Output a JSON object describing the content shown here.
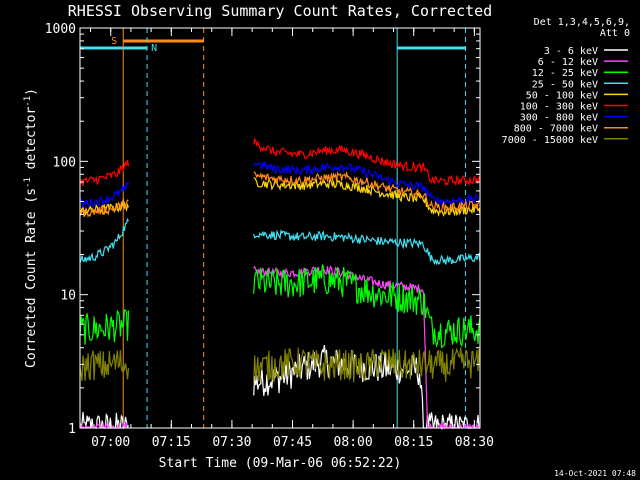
{
  "chart_data": {
    "type": "line",
    "title": "RHESSI Observing Summary Count Rates, Corrected",
    "xlabel": "Start Time (09-Mar-06 06:52:22)",
    "ylabel": "Corrected Count Rate (s",
    "ylabel_sup": "-1",
    "ylabel_tail": " detector",
    "ylabel_close": ")",
    "x_unit": "minutes since 06:52:22",
    "xlim": [
      0,
      99
    ],
    "ylim": [
      1,
      1000
    ],
    "yscale": "log",
    "xticks": [
      {
        "value": 7.6,
        "label": "07:00"
      },
      {
        "value": 22.6,
        "label": "07:15"
      },
      {
        "value": 37.6,
        "label": "07:30"
      },
      {
        "value": 52.6,
        "label": "07:45"
      },
      {
        "value": 67.6,
        "label": "08:00"
      },
      {
        "value": 82.6,
        "label": "08:15"
      },
      {
        "value": 97.6,
        "label": "08:30"
      }
    ],
    "yticks": [
      {
        "value": 1,
        "label": "1"
      },
      {
        "value": 10,
        "label": "10"
      },
      {
        "value": 100,
        "label": "100"
      },
      {
        "value": 1000,
        "label": "1000"
      }
    ],
    "legend_header": [
      "Det 1,3,4,5,6,9,",
      "Att 0"
    ],
    "legend_position": "right",
    "footer_timestamp": "14-Oct-2021 07:48",
    "annotations": [
      {
        "text": "S",
        "color": "#ff8c1a"
      },
      {
        "text": "N",
        "color": "#40e0f0"
      }
    ],
    "gaps": [
      [
        12.0,
        43.0
      ],
      [
        105.0,
        110.0
      ]
    ],
    "series": [
      {
        "name": "3 - 6 keV",
        "color": "#ffffff",
        "x": [
          0,
          12,
          43,
          50,
          55,
          60,
          65,
          70,
          75,
          80,
          84,
          85,
          90,
          95,
          99
        ],
        "y": [
          1,
          1,
          2.2,
          2.4,
          2.8,
          3.2,
          3.0,
          2.9,
          2.8,
          2.8,
          2.7,
          1,
          1,
          1,
          1
        ]
      },
      {
        "name": "6 - 12 keV",
        "color": "#ff44ff",
        "x": [
          0,
          12,
          43,
          50,
          55,
          60,
          65,
          70,
          75,
          80,
          85,
          86,
          90,
          95,
          99
        ],
        "y": [
          1,
          1,
          15,
          14.5,
          14.8,
          15.6,
          14.5,
          13,
          12,
          11.5,
          11,
          1,
          1,
          1,
          1
        ]
      },
      {
        "name": "12 - 25 keV",
        "color": "#00ff00",
        "x": [
          0,
          3,
          6,
          9,
          12,
          43,
          48,
          55,
          60,
          65,
          70,
          75,
          80,
          85,
          87,
          90,
          95,
          99
        ],
        "y": [
          5.5,
          5.5,
          5.6,
          5.8,
          5.9,
          12.5,
          12,
          12.3,
          13,
          12.5,
          11,
          10,
          9.5,
          9,
          5.5,
          5.3,
          5.4,
          5.5
        ]
      },
      {
        "name": "25 - 50 keV",
        "color": "#40e0f0",
        "x": [
          0,
          3,
          6,
          9,
          11,
          12,
          43,
          48,
          55,
          60,
          65,
          70,
          75,
          80,
          85,
          87,
          90,
          95,
          99
        ],
        "y": [
          18,
          19,
          21,
          25,
          32,
          35,
          29,
          28,
          27,
          27.5,
          27,
          26,
          25,
          24.5,
          24,
          18.5,
          18,
          18.5,
          19
        ]
      },
      {
        "name": "50 - 100 keV",
        "color": "#ffd700",
        "x": [
          0,
          3,
          6,
          9,
          12,
          43,
          48,
          55,
          60,
          65,
          70,
          75,
          80,
          85,
          87,
          90,
          95,
          99
        ],
        "y": [
          42,
          43,
          44,
          45,
          47,
          70,
          67,
          66,
          68,
          67,
          63,
          58,
          54,
          52,
          43,
          42,
          43,
          44
        ]
      },
      {
        "name": "100 - 300 keV",
        "color": "#ff0000",
        "x": [
          0,
          3,
          6,
          9,
          11,
          12,
          43,
          48,
          55,
          60,
          65,
          70,
          75,
          80,
          85,
          87,
          90,
          95,
          99
        ],
        "y": [
          70,
          72,
          75,
          80,
          92,
          98,
          138,
          118,
          112,
          120,
          122,
          112,
          100,
          92,
          89,
          72,
          71,
          72,
          73
        ]
      },
      {
        "name": "300 - 800 keV",
        "color": "#0000ff",
        "x": [
          0,
          3,
          6,
          9,
          12,
          43,
          48,
          55,
          60,
          65,
          70,
          75,
          80,
          85,
          87,
          90,
          95,
          99
        ],
        "y": [
          48,
          49,
          51,
          56,
          65,
          98,
          88,
          85,
          90,
          92,
          84,
          74,
          67,
          64,
          52,
          50,
          51,
          52
        ]
      },
      {
        "name": "800 - 7000 keV",
        "color": "#ff8c1a",
        "x": [
          0,
          3,
          6,
          9,
          12,
          43,
          48,
          55,
          60,
          65,
          70,
          75,
          80,
          85,
          87,
          90,
          95,
          99
        ],
        "y": [
          41,
          42,
          43,
          45,
          50,
          78,
          74,
          72,
          75,
          76,
          71,
          64,
          59,
          56,
          46,
          45,
          46,
          47
        ]
      },
      {
        "name": "7000 - 15000 keV",
        "color": "#808000",
        "x": [
          0,
          3,
          6,
          9,
          12,
          43,
          50,
          55,
          60,
          65,
          70,
          75,
          80,
          85,
          90,
          95,
          99
        ],
        "y": [
          2.8,
          3.0,
          2.9,
          3.1,
          3.0,
          2.8,
          3.0,
          3.1,
          2.9,
          3.0,
          2.8,
          3.2,
          2.9,
          3.0,
          2.9,
          3.1,
          3.0
        ]
      }
    ]
  }
}
